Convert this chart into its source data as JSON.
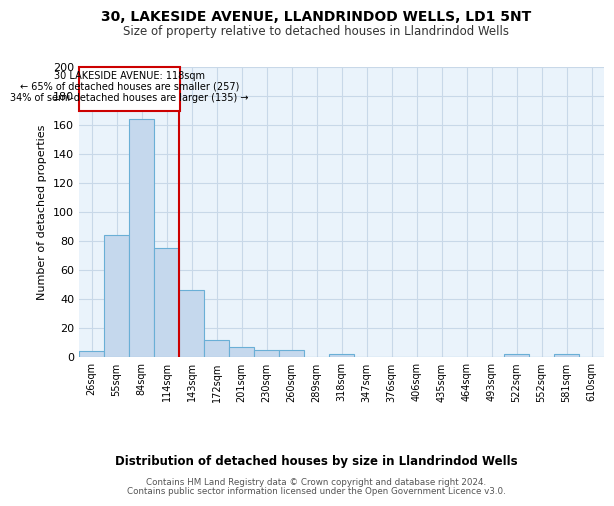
{
  "title1": "30, LAKESIDE AVENUE, LLANDRINDOD WELLS, LD1 5NT",
  "title2": "Size of property relative to detached houses in Llandrindod Wells",
  "xlabel": "Distribution of detached houses by size in Llandrindod Wells",
  "ylabel": "Number of detached properties",
  "footer1": "Contains HM Land Registry data © Crown copyright and database right 2024.",
  "footer2": "Contains public sector information licensed under the Open Government Licence v3.0.",
  "categories": [
    "26sqm",
    "55sqm",
    "84sqm",
    "114sqm",
    "143sqm",
    "172sqm",
    "201sqm",
    "230sqm",
    "260sqm",
    "289sqm",
    "318sqm",
    "347sqm",
    "376sqm",
    "406sqm",
    "435sqm",
    "464sqm",
    "493sqm",
    "522sqm",
    "552sqm",
    "581sqm",
    "610sqm"
  ],
  "values": [
    4,
    84,
    164,
    75,
    46,
    12,
    7,
    5,
    5,
    0,
    2,
    0,
    0,
    0,
    0,
    0,
    0,
    2,
    0,
    2,
    0
  ],
  "bar_color": "#c5d8ed",
  "bar_edge_color": "#6aafd6",
  "annotation_property": "30 LAKESIDE AVENUE: 118sqm",
  "annotation_line1": "← 65% of detached houses are smaller (257)",
  "annotation_line2": "34% of semi-detached houses are larger (135) →",
  "red_line_x": 3.5,
  "ylim": [
    0,
    200
  ],
  "yticks": [
    0,
    20,
    40,
    60,
    80,
    100,
    120,
    140,
    160,
    180,
    200
  ],
  "annotation_box_color": "#ffffff",
  "annotation_box_edge": "#cc0000",
  "red_line_color": "#cc0000",
  "grid_color": "#c8d8e8",
  "bg_color": "#eaf3fb"
}
